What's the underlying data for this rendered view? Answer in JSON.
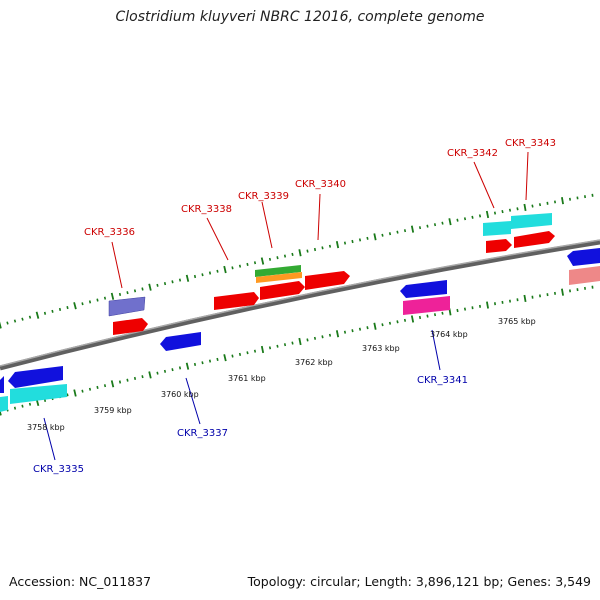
{
  "title": "Clostridium kluyveri NBRC 12016, complete genome",
  "footer": {
    "accession": "Accession: NC_011837",
    "summary": "Topology: circular; Length: 3,896,121 bp; Genes: 3,549"
  },
  "colors": {
    "backbone": "#808080",
    "ticks": "#1a7a1a",
    "forward_label": "#cc0000",
    "reverse_label": "#0000aa",
    "red": "#ee0000",
    "blue": "#1111dd",
    "cyan": "#22dddd",
    "green": "#33aa33",
    "orange": "#ff9922",
    "slate": "#7070cc",
    "magenta": "#ee2299",
    "pink": "#ee8888"
  },
  "scale_labels": [
    "3758 kbp",
    "3759 kbp",
    "3760 kbp",
    "3761 kbp",
    "3762 kbp",
    "3763 kbp",
    "3764 kbp",
    "3765 kbp"
  ],
  "gene_labels": [
    {
      "text": "CKR_3336",
      "strand": "forward"
    },
    {
      "text": "CKR_3338",
      "strand": "forward"
    },
    {
      "text": "CKR_3339",
      "strand": "forward"
    },
    {
      "text": "CKR_3340",
      "strand": "forward"
    },
    {
      "text": "CKR_3342",
      "strand": "forward"
    },
    {
      "text": "CKR_3343",
      "strand": "forward"
    },
    {
      "text": "CKR_3335",
      "strand": "reverse"
    },
    {
      "text": "CKR_3337",
      "strand": "reverse"
    },
    {
      "text": "CKR_3341",
      "strand": "reverse"
    }
  ]
}
